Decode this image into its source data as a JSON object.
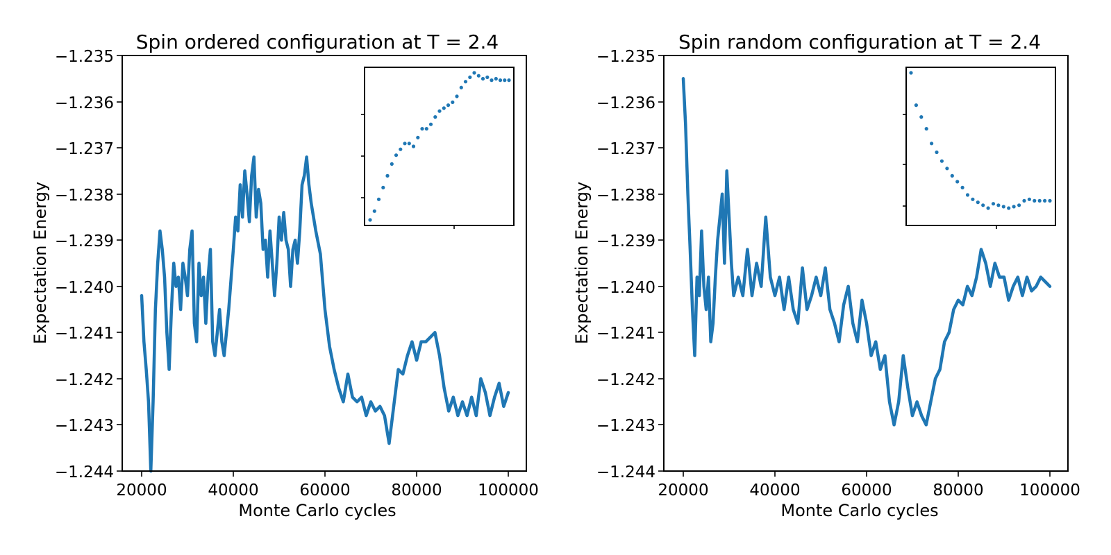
{
  "colors": {
    "series": "#1f77b4",
    "axes": "#000000",
    "background": "#ffffff"
  },
  "chart_data": [
    {
      "type": "line",
      "title": "Spin ordered configuration at T = 2.4",
      "xlabel": "Monte Carlo cycles",
      "ylabel": "Expectation Energy",
      "xlim": [
        20000,
        100000
      ],
      "ylim": [
        -1.244,
        -1.235
      ],
      "xticks": [
        "20000",
        "40000",
        "60000",
        "80000",
        "100000"
      ],
      "yticks": [
        "−1.244",
        "−1.243",
        "−1.242",
        "−1.241",
        "−1.240",
        "−1.239",
        "−1.238",
        "−1.237",
        "−1.236",
        "−1.235"
      ],
      "grid": false,
      "series": [
        {
          "x": [
            20000,
            20500,
            21000,
            21500,
            22000,
            22500,
            23000,
            23500,
            24000,
            24500,
            25000,
            25500,
            26000,
            26500,
            27000,
            27500,
            28000,
            28500,
            29000,
            29500,
            30000,
            30500,
            31000,
            31500,
            32000,
            32500,
            33000,
            33500,
            34000,
            34500,
            35000,
            35500,
            36000,
            36500,
            37000,
            37500,
            38000,
            39000,
            40000,
            40500,
            41000,
            41500,
            42000,
            42500,
            43000,
            43500,
            44000,
            44500,
            45000,
            45500,
            46000,
            46500,
            47000,
            47500,
            48000,
            48500,
            49000,
            49500,
            50000,
            50500,
            51000,
            51500,
            52000,
            52500,
            53000,
            53500,
            54000,
            54500,
            55000,
            55500,
            56000,
            56500,
            57000,
            58000,
            59000,
            60000,
            61000,
            62000,
            63000,
            64000,
            65000,
            66000,
            67000,
            68000,
            69000,
            70000,
            71000,
            72000,
            73000,
            74000,
            75000,
            76000,
            77000,
            78000,
            79000,
            80000,
            81000,
            82000,
            83000,
            84000,
            85000,
            86000,
            87000,
            88000,
            89000,
            90000,
            91000,
            92000,
            93000,
            94000,
            95000,
            96000,
            97000,
            98000,
            99000,
            100000
          ],
          "y": [
            -1.2402,
            -1.2412,
            -1.2418,
            -1.2425,
            -1.244,
            -1.2425,
            -1.2405,
            -1.2395,
            -1.2388,
            -1.2392,
            -1.2398,
            -1.241,
            -1.2418,
            -1.2405,
            -1.2395,
            -1.24,
            -1.2398,
            -1.2405,
            -1.2395,
            -1.2398,
            -1.2402,
            -1.2392,
            -1.2388,
            -1.2408,
            -1.2412,
            -1.2395,
            -1.2402,
            -1.2398,
            -1.2408,
            -1.2398,
            -1.2392,
            -1.2412,
            -1.2415,
            -1.241,
            -1.2405,
            -1.2412,
            -1.2415,
            -1.2405,
            -1.2392,
            -1.2385,
            -1.2388,
            -1.2378,
            -1.2385,
            -1.2375,
            -1.238,
            -1.2386,
            -1.2376,
            -1.2372,
            -1.2385,
            -1.2379,
            -1.2382,
            -1.2392,
            -1.239,
            -1.2398,
            -1.2388,
            -1.2395,
            -1.2402,
            -1.2395,
            -1.2385,
            -1.239,
            -1.2384,
            -1.239,
            -1.2392,
            -1.24,
            -1.2392,
            -1.239,
            -1.2395,
            -1.2388,
            -1.2378,
            -1.2376,
            -1.2372,
            -1.2378,
            -1.2382,
            -1.2388,
            -1.2393,
            -1.2405,
            -1.2413,
            -1.2418,
            -1.2422,
            -1.2425,
            -1.2419,
            -1.2424,
            -1.2425,
            -1.2424,
            -1.2428,
            -1.2425,
            -1.2427,
            -1.2426,
            -1.2428,
            -1.2434,
            -1.2426,
            -1.2418,
            -1.2419,
            -1.2415,
            -1.2412,
            -1.2416,
            -1.2412,
            -1.2412,
            -1.2411,
            -1.241,
            -1.2415,
            -1.2422,
            -1.2427,
            -1.2424,
            -1.2428,
            -1.2425,
            -1.2428,
            -1.2424,
            -1.2428,
            -1.242,
            -1.2423,
            -1.2428,
            -1.2424,
            -1.2421,
            -1.2426,
            -1.2423
          ]
        }
      ],
      "inset": {
        "type": "scatter",
        "description_hidden": true
      }
    },
    {
      "type": "line",
      "title": "Spin random configuration at T = 2.4",
      "xlabel": "Monte Carlo cycles",
      "ylabel": "Expectation Energy",
      "xlim": [
        20000,
        100000
      ],
      "ylim": [
        -1.244,
        -1.235
      ],
      "xticks": [
        "20000",
        "40000",
        "60000",
        "80000",
        "100000"
      ],
      "yticks": [
        "−1.244",
        "−1.243",
        "−1.242",
        "−1.241",
        "−1.240",
        "−1.239",
        "−1.238",
        "−1.237",
        "−1.236",
        "−1.235"
      ],
      "grid": false,
      "series": [
        {
          "x": [
            20000,
            20500,
            21000,
            21500,
            22000,
            22500,
            23000,
            23500,
            24000,
            24500,
            25000,
            25500,
            26000,
            26500,
            27000,
            27500,
            28000,
            28500,
            29000,
            29500,
            30000,
            30500,
            31000,
            32000,
            33000,
            34000,
            35000,
            36000,
            37000,
            38000,
            39000,
            40000,
            41000,
            42000,
            43000,
            44000,
            45000,
            46000,
            47000,
            48000,
            49000,
            50000,
            51000,
            52000,
            53000,
            54000,
            55000,
            56000,
            57000,
            58000,
            59000,
            60000,
            61000,
            62000,
            63000,
            64000,
            65000,
            66000,
            67000,
            68000,
            69000,
            70000,
            71000,
            72000,
            73000,
            74000,
            75000,
            76000,
            77000,
            78000,
            79000,
            80000,
            81000,
            82000,
            83000,
            84000,
            85000,
            86000,
            87000,
            88000,
            89000,
            90000,
            91000,
            92000,
            93000,
            94000,
            95000,
            96000,
            97000,
            98000,
            99000,
            100000
          ],
          "y": [
            -1.2355,
            -1.2365,
            -1.238,
            -1.2392,
            -1.2405,
            -1.2415,
            -1.2398,
            -1.2402,
            -1.2388,
            -1.24,
            -1.2405,
            -1.2398,
            -1.2412,
            -1.2408,
            -1.2398,
            -1.239,
            -1.2385,
            -1.238,
            -1.2395,
            -1.2375,
            -1.2385,
            -1.2395,
            -1.2402,
            -1.2398,
            -1.2402,
            -1.2392,
            -1.2402,
            -1.2395,
            -1.24,
            -1.2385,
            -1.2398,
            -1.2402,
            -1.2398,
            -1.2405,
            -1.2398,
            -1.2405,
            -1.2408,
            -1.2396,
            -1.2405,
            -1.2402,
            -1.2398,
            -1.2402,
            -1.2396,
            -1.2405,
            -1.2408,
            -1.2412,
            -1.2404,
            -1.24,
            -1.2408,
            -1.2412,
            -1.2403,
            -1.2408,
            -1.2415,
            -1.2412,
            -1.2418,
            -1.2415,
            -1.2425,
            -1.243,
            -1.2425,
            -1.2415,
            -1.2422,
            -1.2428,
            -1.2425,
            -1.2428,
            -1.243,
            -1.2425,
            -1.242,
            -1.2418,
            -1.2412,
            -1.241,
            -1.2405,
            -1.2403,
            -1.2404,
            -1.24,
            -1.2402,
            -1.2398,
            -1.2392,
            -1.2395,
            -1.24,
            -1.2395,
            -1.2398,
            -1.2398,
            -1.2403,
            -1.24,
            -1.2398,
            -1.2402,
            -1.2398,
            -1.2401,
            -1.24,
            -1.2398,
            -1.2399,
            -1.24
          ]
        }
      ],
      "inset": {
        "type": "scatter",
        "description_hidden": true
      }
    }
  ],
  "insets": [
    {
      "values": [
        0.0,
        0.06,
        0.14,
        0.22,
        0.3,
        0.38,
        0.44,
        0.48,
        0.52,
        0.52,
        0.5,
        0.56,
        0.62,
        0.62,
        0.65,
        0.7,
        0.74,
        0.76,
        0.78,
        0.8,
        0.84,
        0.9,
        0.94,
        0.97,
        1.0,
        0.98,
        0.96,
        0.97,
        0.95,
        0.96,
        0.95,
        0.95,
        0.95
      ]
    },
    {
      "values": [
        1.0,
        0.78,
        0.7,
        0.62,
        0.52,
        0.46,
        0.4,
        0.35,
        0.3,
        0.26,
        0.22,
        0.17,
        0.14,
        0.12,
        0.1,
        0.08,
        0.11,
        0.1,
        0.09,
        0.08,
        0.09,
        0.1,
        0.13,
        0.14,
        0.13,
        0.13,
        0.13,
        0.13
      ]
    }
  ]
}
